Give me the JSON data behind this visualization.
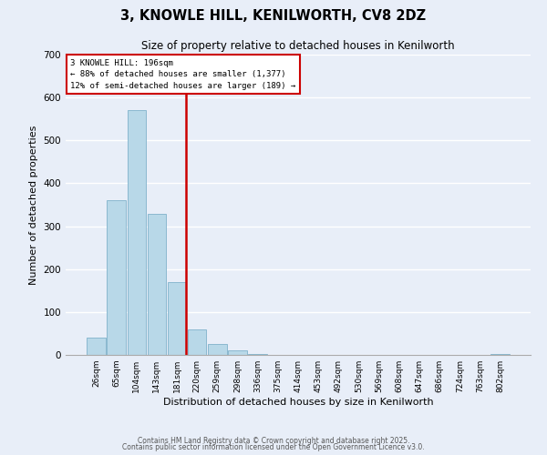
{
  "title": "3, KNOWLE HILL, KENILWORTH, CV8 2DZ",
  "subtitle": "Size of property relative to detached houses in Kenilworth",
  "xlabel": "Distribution of detached houses by size in Kenilworth",
  "ylabel": "Number of detached properties",
  "bar_color": "#b8d8e8",
  "bar_edge_color": "#8ab8d0",
  "background_color": "#e8eef8",
  "grid_color": "#ffffff",
  "bins": [
    "26sqm",
    "65sqm",
    "104sqm",
    "143sqm",
    "181sqm",
    "220sqm",
    "259sqm",
    "298sqm",
    "336sqm",
    "375sqm",
    "414sqm",
    "453sqm",
    "492sqm",
    "530sqm",
    "569sqm",
    "608sqm",
    "647sqm",
    "686sqm",
    "724sqm",
    "763sqm",
    "802sqm"
  ],
  "values": [
    40,
    360,
    570,
    328,
    170,
    60,
    25,
    10,
    2,
    0,
    0,
    0,
    0,
    0,
    0,
    0,
    0,
    0,
    0,
    0,
    2
  ],
  "ylim": [
    0,
    700
  ],
  "yticks": [
    0,
    100,
    200,
    300,
    400,
    500,
    600,
    700
  ],
  "vline_x": 4.45,
  "vline_color": "#cc0000",
  "property_line_label": "3 KNOWLE HILL: 196sqm",
  "annotation_line1": "← 88% of detached houses are smaller (1,377)",
  "annotation_line2": "12% of semi-detached houses are larger (189) →",
  "annotation_box_color": "#ffffff",
  "annotation_border_color": "#cc0000",
  "footer1": "Contains HM Land Registry data © Crown copyright and database right 2025.",
  "footer2": "Contains public sector information licensed under the Open Government Licence v3.0."
}
